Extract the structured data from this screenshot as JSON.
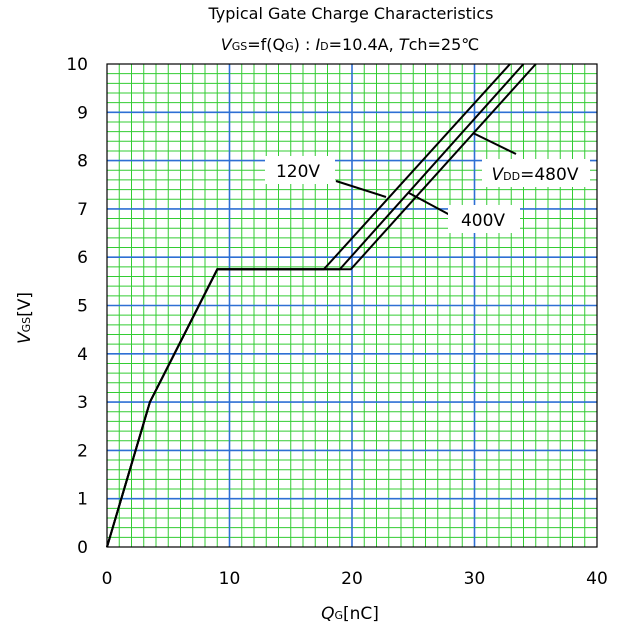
{
  "chart_data": {
    "type": "line",
    "title": "Typical Gate Charge Characteristics",
    "subtitle": {
      "p1": "V",
      "p2": "GS",
      "p3": "=f(Q",
      "p4": "G",
      "p5": ") : ",
      "p6": "I",
      "p7": "D",
      "p8": "=10.4A, ",
      "p9": "T",
      "p10": "ch=25℃"
    },
    "xlabel": {
      "main": "Q",
      "sub": "G",
      "unit": "[nC]"
    },
    "ylabel": {
      "main": "V",
      "sub": "GS",
      "unit": "[V]"
    },
    "xlim": [
      0,
      40
    ],
    "ylim": [
      0,
      10
    ],
    "x_ticks": [
      "0",
      "10",
      "20",
      "30",
      "40"
    ],
    "y_ticks": [
      "0",
      "1",
      "2",
      "3",
      "4",
      "5",
      "6",
      "7",
      "8",
      "9",
      "10"
    ],
    "grid": true,
    "series": [
      {
        "name": "120V",
        "x": [
          0,
          3.5,
          9,
          17.7,
          32.9
        ],
        "y": [
          0,
          3.0,
          5.75,
          5.75,
          10
        ]
      },
      {
        "name": "400V",
        "x": [
          0,
          3.5,
          9,
          19.0,
          34.0
        ],
        "y": [
          0,
          3.0,
          5.75,
          5.75,
          10
        ]
      },
      {
        "name": "480V",
        "x": [
          0,
          3.5,
          9,
          19.9,
          35.0
        ],
        "y": [
          0,
          3.0,
          5.75,
          5.75,
          10
        ]
      }
    ],
    "annotations": [
      {
        "label": "120V",
        "series": "120V"
      },
      {
        "label": "400V",
        "series": "400V"
      },
      {
        "label_main": "V",
        "label_sub": "DD",
        "label_rest": "=480V",
        "series": "480V"
      }
    ],
    "colors": {
      "grid_major": "#2e6fd4",
      "grid_minor": "#33cc33",
      "line": "#000000"
    }
  }
}
